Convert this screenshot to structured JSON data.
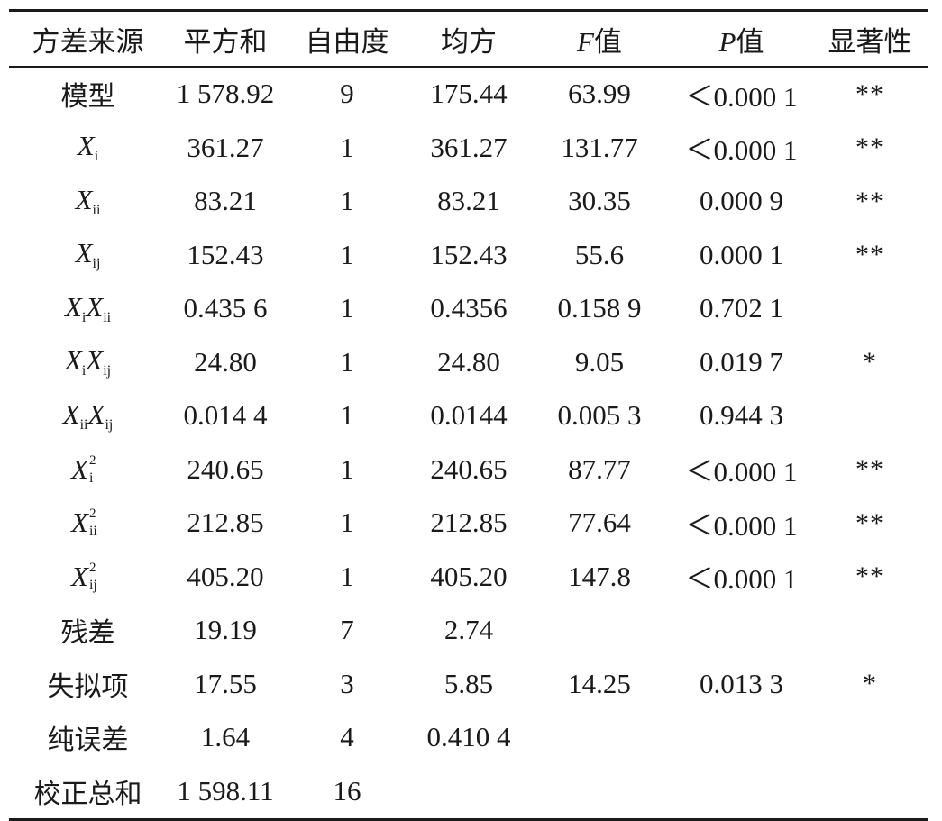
{
  "table": {
    "headers": [
      {
        "text": "方差来源"
      },
      {
        "text": "平方和"
      },
      {
        "text": "自由度"
      },
      {
        "text": "均方"
      },
      {
        "italic": "F",
        "text": "值"
      },
      {
        "italic": "P",
        "text": "值"
      },
      {
        "text": "显著性"
      }
    ],
    "rows": [
      {
        "source": {
          "text": "模型"
        },
        "ss": "1 578.92",
        "df": "9",
        "ms": "175.44",
        "f": "63.99",
        "p": "＜0.000 1",
        "sig": "**"
      },
      {
        "source": {
          "x": "X",
          "sub": "i"
        },
        "ss": "361.27",
        "df": "1",
        "ms": "361.27",
        "f": "131.77",
        "p": "＜0.000 1",
        "sig": "**"
      },
      {
        "source": {
          "x": "X",
          "sub": "ii"
        },
        "ss": "83.21",
        "df": "1",
        "ms": "83.21",
        "f": "30.35",
        "p": "0.000 9",
        "sig": "**"
      },
      {
        "source": {
          "x": "X",
          "sub": "ij"
        },
        "ss": "152.43",
        "df": "1",
        "ms": "152.43",
        "f": "55.6",
        "p": "0.000 1",
        "sig": "**"
      },
      {
        "source": {
          "x": "X",
          "sub": "i",
          "x2": "X",
          "sub2": "ii"
        },
        "ss": "0.435 6",
        "df": "1",
        "ms": "0.4356",
        "f": "0.158 9",
        "p": "0.702 1",
        "sig": ""
      },
      {
        "source": {
          "x": "X",
          "sub": "i",
          "x2": "X",
          "sub2": "ij"
        },
        "ss": "24.80",
        "df": "1",
        "ms": "24.80",
        "f": "9.05",
        "p": "0.019 7",
        "sig": "*"
      },
      {
        "source": {
          "x": "X",
          "sub": "ii",
          "x2": "X",
          "sub2": "ij"
        },
        "ss": "0.014 4",
        "df": "1",
        "ms": "0.0144",
        "f": "0.005 3",
        "p": "0.944 3",
        "sig": ""
      },
      {
        "source": {
          "x": "X",
          "sub": "i",
          "sup": "2"
        },
        "ss": "240.65",
        "df": "1",
        "ms": "240.65",
        "f": "87.77",
        "p": "＜0.000 1",
        "sig": "**"
      },
      {
        "source": {
          "x": "X",
          "sub": "ii",
          "sup": "2"
        },
        "ss": "212.85",
        "df": "1",
        "ms": "212.85",
        "f": "77.64",
        "p": "＜0.000 1",
        "sig": "**"
      },
      {
        "source": {
          "x": "X",
          "sub": "ij",
          "sup": "2"
        },
        "ss": "405.20",
        "df": "1",
        "ms": "405.20",
        "f": "147.8",
        "p": "＜0.000 1",
        "sig": "**"
      },
      {
        "source": {
          "text": "残差"
        },
        "ss": "19.19",
        "df": "7",
        "ms": "2.74",
        "f": "",
        "p": "",
        "sig": ""
      },
      {
        "source": {
          "text": "失拟项"
        },
        "ss": "17.55",
        "df": "3",
        "ms": "5.85",
        "f": "14.25",
        "p": "0.013 3",
        "sig": "*"
      },
      {
        "source": {
          "text": "纯误差"
        },
        "ss": "1.64",
        "df": "4",
        "ms": "0.410 4",
        "f": "",
        "p": "",
        "sig": ""
      },
      {
        "source": {
          "text": "校正总和"
        },
        "ss": "1 598.11",
        "df": "16",
        "ms": "",
        "f": "",
        "p": "",
        "sig": ""
      }
    ]
  }
}
